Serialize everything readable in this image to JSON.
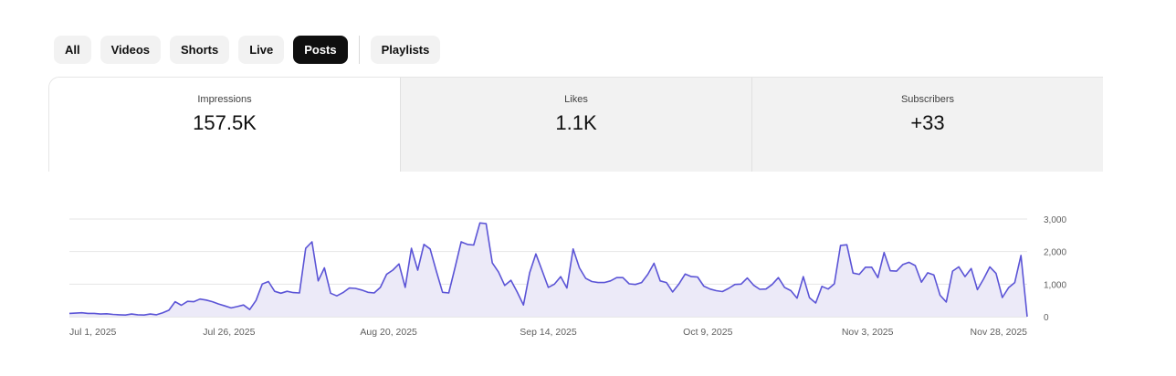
{
  "filters": {
    "chips": [
      "All",
      "Videos",
      "Shorts",
      "Live",
      "Posts"
    ],
    "playlists_label": "Playlists",
    "active": "Posts"
  },
  "metrics": [
    {
      "label": "Impressions",
      "value": "157.5K"
    },
    {
      "label": "Likes",
      "value": "1.1K"
    },
    {
      "label": "Subscribers",
      "value": "+33"
    }
  ],
  "colors": {
    "line": "#5b54d6",
    "fill": "#eceaf8",
    "grid": "#e6e6e6",
    "axis_text": "#606060"
  },
  "chart_data": {
    "type": "area",
    "x_start": "Jul 1, 2025",
    "x_end": "Nov 28, 2025",
    "x_ticks": [
      "Jul 1, 2025",
      "Jul 26, 2025",
      "Aug 20, 2025",
      "Sep 14, 2025",
      "Oct 9, 2025",
      "Nov 3, 2025",
      "Nov 28, 2025"
    ],
    "y_ticks": [
      "3,000",
      "2,000",
      "1,000",
      "0"
    ],
    "ylim": [
      0,
      3000
    ],
    "grid": true,
    "series": [
      {
        "values": [
          100,
          110,
          120,
          100,
          100,
          80,
          90,
          70,
          60,
          50,
          80,
          60,
          50,
          80,
          60,
          120,
          200,
          460,
          350,
          470,
          460,
          540,
          510,
          460,
          390,
          330,
          270,
          310,
          360,
          220,
          500,
          1000,
          1080,
          780,
          720,
          780,
          740,
          730,
          2100,
          2300,
          1100,
          1500,
          720,
          640,
          740,
          880,
          870,
          820,
          750,
          730,
          900,
          1300,
          1430,
          1620,
          900,
          2100,
          1430,
          2220,
          2080,
          1400,
          750,
          730,
          1500,
          2300,
          2220,
          2200,
          2880,
          2860,
          1650,
          1370,
          960,
          1120,
          760,
          360,
          1350,
          1930,
          1420,
          900,
          1000,
          1230,
          880,
          2080,
          1500,
          1180,
          1080,
          1050,
          1050,
          1100,
          1200,
          1200,
          1010,
          990,
          1050,
          1300,
          1640,
          1100,
          1050,
          760,
          1000,
          1310,
          1230,
          1220,
          940,
          850,
          800,
          770,
          870,
          990,
          1000,
          1190,
          970,
          840,
          850,
          990,
          1200,
          900,
          800,
          570,
          1230,
          580,
          420,
          930,
          850,
          1010,
          2190,
          2210,
          1340,
          1300,
          1520,
          1520,
          1200,
          1970,
          1410,
          1400,
          1600,
          1670,
          1570,
          1060,
          1350,
          1280,
          660,
          450,
          1400,
          1530,
          1230,
          1480,
          830,
          1160,
          1530,
          1330,
          590,
          890,
          1050,
          1880,
          0
        ]
      }
    ]
  }
}
